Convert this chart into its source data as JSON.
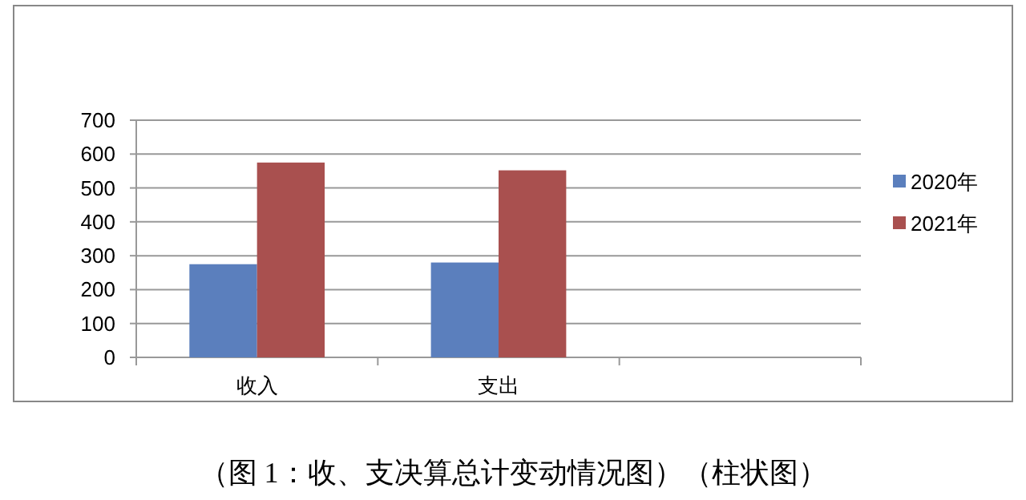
{
  "chart_data": {
    "type": "bar",
    "title": "（图 1：收、支决算总计变动情况图）（柱状图）",
    "categories": [
      "收入",
      "支出",
      null
    ],
    "series": [
      {
        "name": "2020年",
        "color": "#5b7fbd",
        "values": [
          275,
          280,
          null
        ]
      },
      {
        "name": "2021年",
        "color": "#a9504f",
        "values": [
          575,
          552,
          null
        ]
      }
    ],
    "ylim": [
      0,
      700
    ],
    "yticks": [
      0,
      100,
      200,
      300,
      400,
      500,
      600,
      700
    ],
    "grid": "y",
    "legend": "right"
  }
}
